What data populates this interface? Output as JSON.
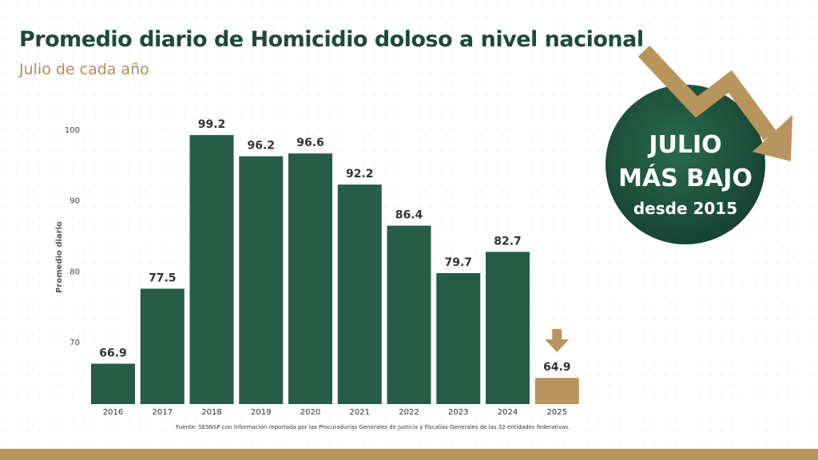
{
  "header": {
    "title": "Promedio diario de Homicidio doloso a nivel nacional",
    "subtitle": "Julio de cada año"
  },
  "badge": {
    "line1": "JULIO",
    "line2": "MÁS BAJO",
    "line3": "desde 2015",
    "icon": "trend-down-arrow-icon"
  },
  "footer": {
    "source": "Fuente: SESNSP con información reportada por las Procuradurías Generales de Justicia y Fiscalías Generales de las 32 entidades federativas."
  },
  "colors": {
    "bar": "#265c48",
    "highlight": "#b8955c",
    "title": "#1f4a3a",
    "subtitle": "#b08d57"
  },
  "chart_data": {
    "type": "bar",
    "title": "Promedio diario de Homicidio doloso a nivel nacional",
    "subtitle": "Julio de cada año",
    "xlabel": "",
    "ylabel": "Promedio diario",
    "categories": [
      "2016",
      "2017",
      "2018",
      "2019",
      "2020",
      "2021",
      "2022",
      "2023",
      "2024",
      "2025"
    ],
    "values": [
      66.9,
      77.5,
      99.2,
      96.2,
      96.6,
      92.2,
      86.4,
      79.7,
      82.7,
      64.9
    ],
    "data_labels": [
      "66.9",
      "77.5",
      "99.2",
      "96.2",
      "96.6",
      "92.2",
      "86.4",
      "79.7",
      "82.7",
      "64.9"
    ],
    "yticks": [
      "70",
      "80",
      "90",
      "100"
    ],
    "ylim": [
      61.2,
      100
    ],
    "highlight_index": 9,
    "grid": false
  }
}
